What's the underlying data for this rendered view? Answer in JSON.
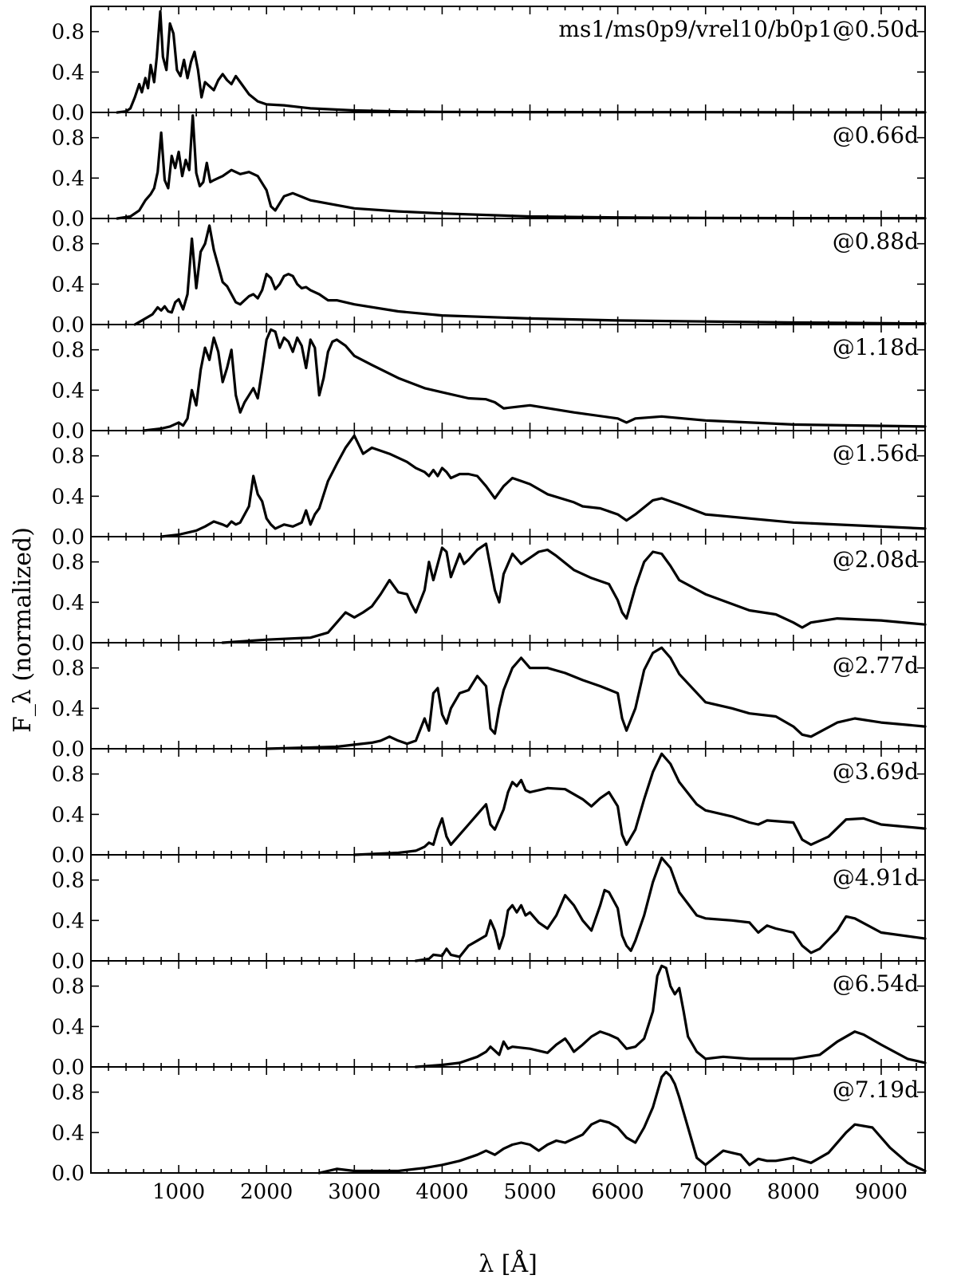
{
  "chart_data": {
    "type": "line",
    "title": "",
    "xlabel": "λ [Å]",
    "ylabel": "F_λ (normalized)",
    "xlim": [
      0,
      9500
    ],
    "ylim": [
      0,
      1.05
    ],
    "x_ticks": [
      1000,
      2000,
      3000,
      4000,
      5000,
      6000,
      7000,
      8000,
      9000
    ],
    "y_ticks": [
      0.0,
      0.4,
      0.8
    ],
    "y_tick_labels": [
      "0.0",
      "0.4",
      "0.8"
    ],
    "panels": [
      {
        "label": "ms1/ms0p9/vrel10/b0p1@0.50d",
        "x": [
          300,
          400,
          450,
          500,
          550,
          580,
          620,
          650,
          680,
          720,
          750,
          790,
          820,
          860,
          900,
          940,
          980,
          1020,
          1060,
          1100,
          1140,
          1180,
          1220,
          1260,
          1300,
          1350,
          1400,
          1450,
          1500,
          1550,
          1600,
          1650,
          1700,
          1800,
          1900,
          2000,
          2200,
          2500,
          3000,
          3500,
          4000,
          5000,
          6000,
          7000,
          8000,
          9500
        ],
        "y": [
          0,
          0.01,
          0.04,
          0.15,
          0.28,
          0.2,
          0.34,
          0.24,
          0.47,
          0.3,
          0.55,
          1.0,
          0.55,
          0.42,
          0.88,
          0.78,
          0.42,
          0.36,
          0.52,
          0.34,
          0.5,
          0.6,
          0.42,
          0.15,
          0.3,
          0.26,
          0.22,
          0.32,
          0.38,
          0.32,
          0.28,
          0.36,
          0.3,
          0.18,
          0.11,
          0.08,
          0.07,
          0.04,
          0.02,
          0.01,
          0.005,
          0.003,
          0.002,
          0.002,
          0.001,
          0.001
        ]
      },
      {
        "label": "@0.66d",
        "x": [
          300,
          450,
          550,
          620,
          680,
          720,
          760,
          800,
          840,
          880,
          920,
          960,
          1000,
          1040,
          1080,
          1120,
          1160,
          1200,
          1240,
          1280,
          1320,
          1360,
          1400,
          1450,
          1500,
          1600,
          1700,
          1800,
          1900,
          1950,
          2000,
          2050,
          2100,
          2150,
          2200,
          2300,
          2500,
          3000,
          3500,
          4000,
          5000,
          6000,
          7000,
          8000,
          9500
        ],
        "y": [
          0,
          0.02,
          0.08,
          0.18,
          0.24,
          0.3,
          0.46,
          0.85,
          0.38,
          0.3,
          0.62,
          0.5,
          0.66,
          0.42,
          0.58,
          0.48,
          1.02,
          0.45,
          0.32,
          0.36,
          0.55,
          0.36,
          0.38,
          0.4,
          0.42,
          0.48,
          0.44,
          0.46,
          0.42,
          0.35,
          0.28,
          0.12,
          0.08,
          0.15,
          0.22,
          0.25,
          0.18,
          0.1,
          0.07,
          0.05,
          0.02,
          0.01,
          0.005,
          0.003,
          0.002
        ]
      },
      {
        "label": "@0.88d",
        "x": [
          500,
          600,
          700,
          760,
          800,
          840,
          880,
          920,
          960,
          1000,
          1050,
          1100,
          1150,
          1200,
          1250,
          1300,
          1350,
          1400,
          1450,
          1500,
          1550,
          1600,
          1650,
          1700,
          1750,
          1800,
          1850,
          1900,
          1950,
          2000,
          2050,
          2100,
          2150,
          2200,
          2250,
          2300,
          2350,
          2400,
          2450,
          2500,
          2600,
          2700,
          2800,
          3000,
          3500,
          4000,
          5000,
          6000,
          7000,
          8000,
          9500
        ],
        "y": [
          0,
          0.05,
          0.1,
          0.17,
          0.14,
          0.18,
          0.13,
          0.12,
          0.22,
          0.25,
          0.15,
          0.3,
          0.85,
          0.36,
          0.72,
          0.8,
          0.98,
          0.74,
          0.58,
          0.42,
          0.38,
          0.3,
          0.22,
          0.2,
          0.24,
          0.28,
          0.3,
          0.26,
          0.34,
          0.5,
          0.46,
          0.35,
          0.4,
          0.48,
          0.5,
          0.48,
          0.4,
          0.36,
          0.37,
          0.34,
          0.3,
          0.24,
          0.24,
          0.2,
          0.13,
          0.09,
          0.06,
          0.04,
          0.03,
          0.02,
          0.01
        ]
      },
      {
        "label": "@1.18d",
        "x": [
          600,
          800,
          900,
          1000,
          1050,
          1100,
          1150,
          1200,
          1250,
          1300,
          1350,
          1400,
          1450,
          1500,
          1550,
          1600,
          1650,
          1700,
          1750,
          1800,
          1850,
          1900,
          1950,
          2000,
          2050,
          2100,
          2150,
          2200,
          2250,
          2300,
          2350,
          2400,
          2450,
          2500,
          2550,
          2600,
          2650,
          2700,
          2750,
          2800,
          2900,
          3000,
          3200,
          3500,
          3800,
          4000,
          4300,
          4500,
          4600,
          4700,
          5000,
          5500,
          6000,
          6100,
          6200,
          6500,
          7000,
          8000,
          9500
        ],
        "y": [
          0,
          0.02,
          0.04,
          0.08,
          0.05,
          0.12,
          0.4,
          0.25,
          0.6,
          0.82,
          0.7,
          0.92,
          0.78,
          0.48,
          0.62,
          0.8,
          0.35,
          0.18,
          0.28,
          0.35,
          0.42,
          0.32,
          0.6,
          0.9,
          1.0,
          0.98,
          0.82,
          0.92,
          0.88,
          0.78,
          0.92,
          0.84,
          0.62,
          0.9,
          0.82,
          0.35,
          0.52,
          0.78,
          0.88,
          0.9,
          0.84,
          0.74,
          0.65,
          0.52,
          0.42,
          0.38,
          0.32,
          0.31,
          0.28,
          0.22,
          0.25,
          0.18,
          0.12,
          0.08,
          0.12,
          0.14,
          0.1,
          0.06,
          0.04
        ]
      },
      {
        "label": "@1.56d",
        "x": [
          800,
          1000,
          1200,
          1300,
          1400,
          1500,
          1550,
          1600,
          1650,
          1700,
          1800,
          1850,
          1900,
          1950,
          2000,
          2050,
          2100,
          2200,
          2300,
          2400,
          2450,
          2500,
          2550,
          2600,
          2700,
          2800,
          2900,
          3000,
          3100,
          3200,
          3400,
          3600,
          3700,
          3800,
          3850,
          3900,
          3950,
          4000,
          4050,
          4100,
          4200,
          4300,
          4400,
          4500,
          4600,
          4700,
          4800,
          4900,
          5000,
          5200,
          5500,
          5600,
          5800,
          6000,
          6100,
          6200,
          6400,
          6500,
          6700,
          7000,
          8000,
          9500
        ],
        "y": [
          0,
          0.02,
          0.06,
          0.1,
          0.15,
          0.12,
          0.1,
          0.15,
          0.12,
          0.14,
          0.3,
          0.6,
          0.42,
          0.35,
          0.18,
          0.12,
          0.08,
          0.12,
          0.1,
          0.14,
          0.26,
          0.12,
          0.22,
          0.28,
          0.55,
          0.72,
          0.88,
          1.0,
          0.82,
          0.88,
          0.82,
          0.74,
          0.68,
          0.64,
          0.6,
          0.66,
          0.6,
          0.68,
          0.64,
          0.58,
          0.62,
          0.62,
          0.6,
          0.5,
          0.38,
          0.5,
          0.58,
          0.55,
          0.52,
          0.42,
          0.34,
          0.3,
          0.28,
          0.22,
          0.16,
          0.22,
          0.36,
          0.38,
          0.32,
          0.22,
          0.14,
          0.08
        ]
      },
      {
        "label": "@2.08d",
        "x": [
          1500,
          2000,
          2500,
          2700,
          2800,
          2900,
          3000,
          3100,
          3200,
          3300,
          3400,
          3500,
          3600,
          3650,
          3700,
          3800,
          3850,
          3900,
          4000,
          4050,
          4100,
          4200,
          4250,
          4300,
          4400,
          4500,
          4600,
          4650,
          4700,
          4800,
          4900,
          5000,
          5100,
          5200,
          5300,
          5500,
          5700,
          5900,
          6000,
          6050,
          6100,
          6200,
          6300,
          6400,
          6500,
          6600,
          6700,
          7000,
          7500,
          7800,
          8000,
          8100,
          8200,
          8500,
          9000,
          9500
        ],
        "y": [
          0,
          0.03,
          0.05,
          0.1,
          0.2,
          0.3,
          0.25,
          0.3,
          0.36,
          0.48,
          0.62,
          0.5,
          0.48,
          0.38,
          0.3,
          0.52,
          0.8,
          0.62,
          0.94,
          0.9,
          0.65,
          0.88,
          0.78,
          0.82,
          0.92,
          0.98,
          0.52,
          0.4,
          0.68,
          0.88,
          0.78,
          0.84,
          0.9,
          0.92,
          0.86,
          0.72,
          0.64,
          0.58,
          0.42,
          0.3,
          0.24,
          0.55,
          0.8,
          0.9,
          0.88,
          0.76,
          0.62,
          0.48,
          0.32,
          0.28,
          0.2,
          0.15,
          0.2,
          0.24,
          0.22,
          0.18
        ]
      },
      {
        "label": "@2.77d",
        "x": [
          2000,
          2800,
          3000,
          3200,
          3300,
          3400,
          3500,
          3600,
          3700,
          3800,
          3850,
          3900,
          3950,
          4000,
          4050,
          4100,
          4200,
          4300,
          4400,
          4500,
          4550,
          4600,
          4650,
          4700,
          4800,
          4900,
          5000,
          5200,
          5400,
          5600,
          5800,
          6000,
          6050,
          6100,
          6200,
          6300,
          6400,
          6500,
          6600,
          6700,
          7000,
          7300,
          7500,
          7800,
          8000,
          8100,
          8200,
          8500,
          8700,
          9000,
          9500
        ],
        "y": [
          0,
          0.02,
          0.04,
          0.06,
          0.08,
          0.12,
          0.08,
          0.05,
          0.08,
          0.3,
          0.18,
          0.55,
          0.6,
          0.34,
          0.25,
          0.4,
          0.55,
          0.58,
          0.72,
          0.62,
          0.2,
          0.15,
          0.4,
          0.58,
          0.8,
          0.9,
          0.8,
          0.8,
          0.75,
          0.68,
          0.62,
          0.55,
          0.3,
          0.18,
          0.4,
          0.78,
          0.95,
          1.0,
          0.9,
          0.74,
          0.46,
          0.4,
          0.35,
          0.32,
          0.22,
          0.14,
          0.12,
          0.26,
          0.3,
          0.26,
          0.22
        ]
      },
      {
        "label": "@3.69d",
        "x": [
          3000,
          3500,
          3700,
          3800,
          3850,
          3900,
          3950,
          4000,
          4050,
          4100,
          4200,
          4300,
          4400,
          4450,
          4500,
          4550,
          4600,
          4700,
          4750,
          4800,
          4850,
          4900,
          4950,
          5000,
          5200,
          5400,
          5600,
          5700,
          5800,
          5900,
          6000,
          6050,
          6100,
          6200,
          6300,
          6400,
          6500,
          6600,
          6700,
          6900,
          7000,
          7300,
          7500,
          7600,
          7700,
          8000,
          8100,
          8200,
          8400,
          8600,
          8800,
          9000,
          9500
        ],
        "y": [
          0,
          0.02,
          0.04,
          0.08,
          0.12,
          0.1,
          0.25,
          0.36,
          0.18,
          0.1,
          0.2,
          0.3,
          0.4,
          0.45,
          0.5,
          0.3,
          0.25,
          0.45,
          0.62,
          0.72,
          0.68,
          0.74,
          0.64,
          0.62,
          0.66,
          0.65,
          0.55,
          0.48,
          0.56,
          0.62,
          0.48,
          0.2,
          0.1,
          0.25,
          0.55,
          0.82,
          1.0,
          0.9,
          0.72,
          0.5,
          0.44,
          0.38,
          0.32,
          0.3,
          0.34,
          0.32,
          0.15,
          0.1,
          0.18,
          0.35,
          0.36,
          0.3,
          0.26
        ]
      },
      {
        "label": "@4.91d",
        "x": [
          3700,
          3850,
          3900,
          4000,
          4050,
          4100,
          4200,
          4300,
          4400,
          4500,
          4550,
          4600,
          4650,
          4700,
          4750,
          4800,
          4850,
          4900,
          4950,
          5000,
          5100,
          5200,
          5300,
          5400,
          5500,
          5600,
          5700,
          5800,
          5850,
          5900,
          6000,
          6050,
          6100,
          6150,
          6200,
          6300,
          6400,
          6500,
          6600,
          6700,
          6900,
          7000,
          7300,
          7500,
          7600,
          7700,
          7800,
          8000,
          8100,
          8200,
          8300,
          8500,
          8600,
          8700,
          9000,
          9500
        ],
        "y": [
          0,
          0.02,
          0.06,
          0.05,
          0.12,
          0.06,
          0.04,
          0.15,
          0.2,
          0.25,
          0.4,
          0.3,
          0.12,
          0.25,
          0.5,
          0.55,
          0.48,
          0.55,
          0.45,
          0.48,
          0.38,
          0.32,
          0.45,
          0.65,
          0.55,
          0.4,
          0.3,
          0.55,
          0.7,
          0.68,
          0.52,
          0.25,
          0.15,
          0.1,
          0.2,
          0.45,
          0.78,
          1.02,
          0.92,
          0.68,
          0.45,
          0.42,
          0.4,
          0.38,
          0.28,
          0.35,
          0.32,
          0.28,
          0.15,
          0.08,
          0.12,
          0.3,
          0.44,
          0.42,
          0.28,
          0.22
        ]
      },
      {
        "label": "@6.54d",
        "x": [
          3700,
          4000,
          4200,
          4400,
          4500,
          4550,
          4600,
          4650,
          4700,
          4750,
          4800,
          5000,
          5200,
          5300,
          5400,
          5450,
          5500,
          5600,
          5700,
          5800,
          5900,
          6000,
          6100,
          6200,
          6300,
          6400,
          6450,
          6500,
          6550,
          6600,
          6650,
          6700,
          6750,
          6800,
          6900,
          7000,
          7200,
          7500,
          8000,
          8300,
          8500,
          8700,
          8800,
          9000,
          9300,
          9500
        ],
        "y": [
          0,
          0.02,
          0.04,
          0.1,
          0.15,
          0.2,
          0.16,
          0.12,
          0.25,
          0.18,
          0.2,
          0.18,
          0.14,
          0.22,
          0.28,
          0.22,
          0.15,
          0.22,
          0.3,
          0.35,
          0.32,
          0.28,
          0.18,
          0.2,
          0.28,
          0.55,
          0.9,
          1.0,
          0.98,
          0.8,
          0.72,
          0.78,
          0.55,
          0.3,
          0.15,
          0.08,
          0.1,
          0.08,
          0.08,
          0.12,
          0.25,
          0.35,
          0.32,
          0.22,
          0.08,
          0.04
        ]
      },
      {
        "label": "@7.19d",
        "x": [
          2600,
          2800,
          3000,
          3500,
          3800,
          4000,
          4200,
          4400,
          4500,
          4600,
          4700,
          4800,
          4900,
          5000,
          5100,
          5200,
          5300,
          5400,
          5500,
          5600,
          5700,
          5800,
          5900,
          6000,
          6100,
          6200,
          6300,
          6400,
          6500,
          6550,
          6600,
          6650,
          6700,
          6800,
          6900,
          7000,
          7100,
          7200,
          7300,
          7400,
          7500,
          7600,
          7700,
          7800,
          8000,
          8200,
          8400,
          8600,
          8700,
          8900,
          9100,
          9300,
          9500
        ],
        "y": [
          0,
          0.04,
          0.02,
          0.02,
          0.05,
          0.08,
          0.12,
          0.18,
          0.22,
          0.18,
          0.24,
          0.28,
          0.3,
          0.28,
          0.22,
          0.28,
          0.32,
          0.3,
          0.34,
          0.38,
          0.48,
          0.52,
          0.5,
          0.45,
          0.35,
          0.3,
          0.45,
          0.65,
          0.95,
          1.0,
          0.96,
          0.88,
          0.75,
          0.45,
          0.15,
          0.08,
          0.15,
          0.22,
          0.2,
          0.18,
          0.08,
          0.14,
          0.12,
          0.12,
          0.15,
          0.1,
          0.2,
          0.4,
          0.48,
          0.45,
          0.25,
          0.1,
          0.02
        ]
      }
    ]
  }
}
